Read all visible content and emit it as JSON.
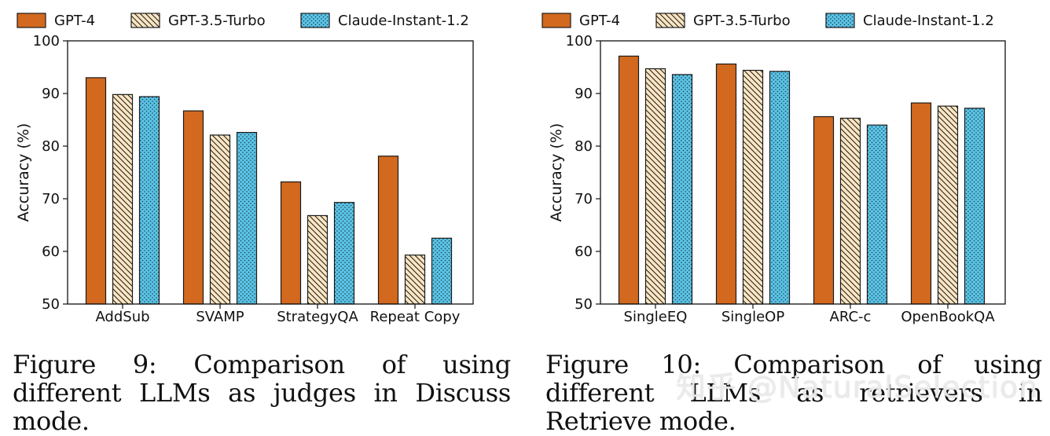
{
  "colors": {
    "gpt4": "#d2691e",
    "gpt35_fill": "#fde6c2",
    "claude_fill": "#5ac4e6",
    "edge": "#1a1a1a"
  },
  "legend": [
    {
      "label": "GPT-4",
      "pattern": "solid"
    },
    {
      "label": "GPT-3.5-Turbo",
      "pattern": "diagonal-hatch"
    },
    {
      "label": "Claude-Instant-1.2",
      "pattern": "dots"
    }
  ],
  "chart_data": [
    {
      "type": "bar",
      "categories": [
        "AddSub",
        "SVAMP",
        "StrategyQA",
        "Repeat Copy"
      ],
      "series": [
        {
          "name": "GPT-4",
          "values": [
            93.0,
            86.7,
            73.2,
            78.1
          ]
        },
        {
          "name": "GPT-3.5-Turbo",
          "values": [
            89.8,
            82.1,
            66.8,
            59.3
          ]
        },
        {
          "name": "Claude-Instant-1.2",
          "values": [
            89.4,
            82.6,
            69.3,
            62.5
          ]
        }
      ],
      "ylabel": "Accuracy (%)",
      "ylim": [
        50,
        100
      ],
      "yticks": [
        50,
        60,
        70,
        80,
        90,
        100
      ],
      "grid": false,
      "legend_position": "top"
    },
    {
      "type": "bar",
      "categories": [
        "SingleEQ",
        "SingleOP",
        "ARC-c",
        "OpenBookQA"
      ],
      "series": [
        {
          "name": "GPT-4",
          "values": [
            97.1,
            95.6,
            85.6,
            88.2
          ]
        },
        {
          "name": "GPT-3.5-Turbo",
          "values": [
            94.7,
            94.4,
            85.3,
            87.6
          ]
        },
        {
          "name": "Claude-Instant-1.2",
          "values": [
            93.6,
            94.2,
            84.0,
            87.2
          ]
        }
      ],
      "ylabel": "Accuracy (%)",
      "ylim": [
        50,
        100
      ],
      "yticks": [
        50,
        60,
        70,
        80,
        90,
        100
      ],
      "grid": false,
      "legend_position": "top"
    }
  ],
  "captions": [
    "Figure 9:  Comparison of using different LLMs as judges in Discuss mode.",
    "Figure 10:  Comparison of using different LLMs as retrievers in Retrieve mode."
  ],
  "watermark": "知乎 @NaturalSelection"
}
